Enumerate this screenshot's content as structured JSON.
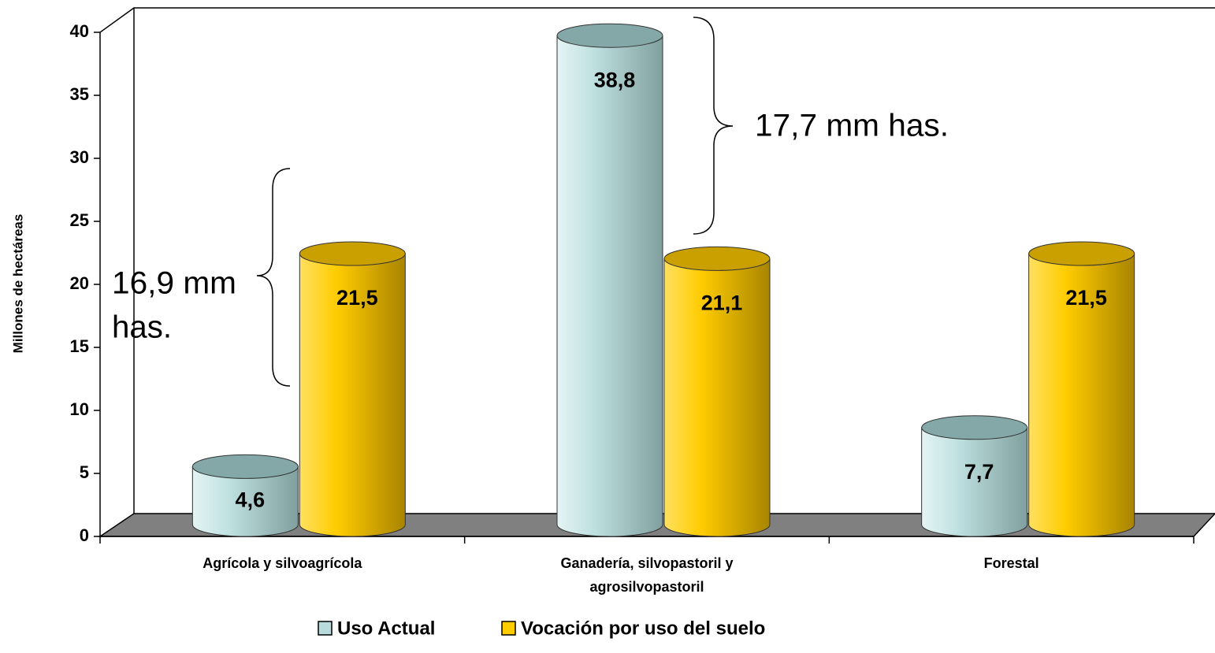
{
  "chart_data": {
    "type": "bar3d",
    "y_axis_label": "Millones de hectáreas",
    "categories": [
      "Agrícola y silvoagrícola",
      "Ganadería, silvopastoril y agrosilvopastoril",
      "Forestal"
    ],
    "series": [
      {
        "name": "Uso Actual",
        "color": "#b8dcdc",
        "values": [
          4.6,
          38.8,
          7.7
        ],
        "value_labels": [
          "4,6",
          "38,8",
          "7,7"
        ]
      },
      {
        "name": "Vocación por uso del suelo",
        "color": "#ffcc00",
        "values": [
          21.5,
          21.1,
          21.5
        ],
        "value_labels": [
          "21,5",
          "21,1",
          "21,5"
        ]
      }
    ],
    "ylim": [
      0,
      40
    ],
    "yticks": [
      0,
      5,
      10,
      15,
      20,
      25,
      30,
      35,
      40
    ],
    "annotations": [
      "16,9 mm",
      "has.",
      "17,7 mm has."
    ],
    "legend": "bottom"
  }
}
